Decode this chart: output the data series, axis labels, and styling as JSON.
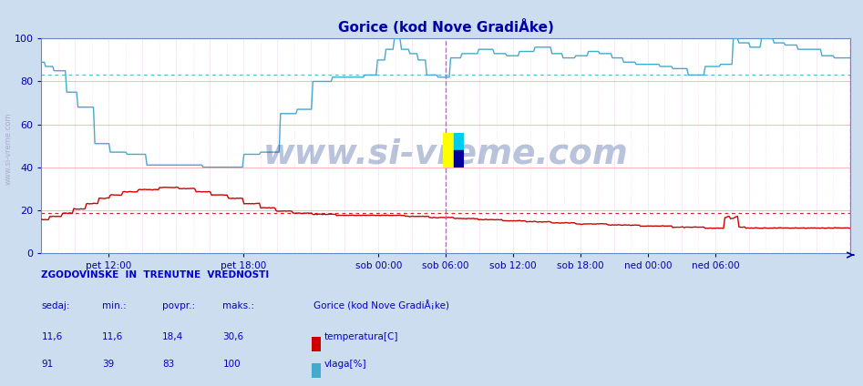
{
  "title": "Gorice (kod Nove GradiÅke)",
  "bg_color": "#ccddf0",
  "plot_bg": "#ffffff",
  "temp_color": "#cc0000",
  "hum_color": "#44aacc",
  "avg_temp": 18.4,
  "avg_hum": 83.0,
  "ylim": [
    0,
    100
  ],
  "yticks": [
    0,
    20,
    40,
    60,
    80,
    100
  ],
  "xtick_labels": [
    "pet 12:00",
    "pet 18:00",
    "sob 00:00",
    "sob 06:00",
    "sob 12:00",
    "sob 18:00",
    "ned 00:00",
    "ned 06:00"
  ],
  "xtick_pos": [
    0.0833,
    0.25,
    0.4167,
    0.5,
    0.5833,
    0.6667,
    0.75,
    0.8333
  ],
  "vline_magenta": [
    0.5,
    1.0
  ],
  "watermark": "www.si-vreme.com",
  "stat_header": "ZGODOVINSKE  IN  TRENUTNE  VREDNOSTI",
  "col_headers": [
    "sedaj:",
    "min.:",
    "povpr.:",
    "maks.:"
  ],
  "legend_station": "Gorice (kod Nove GradiÅ¡ke)",
  "temp_stats": [
    "11,6",
    "11,6",
    "18,4",
    "30,6"
  ],
  "hum_stats": [
    "91",
    "39",
    "83",
    "100"
  ],
  "temp_label": "temperatura[C]",
  "hum_label": "vlaga[%]",
  "grid_color": "#ffcccc",
  "dotgrid_color": "#ddddff",
  "spine_color": "#6688bb",
  "tick_color": "#0000aa",
  "text_color": "#0000cc",
  "title_color": "#0000aa"
}
